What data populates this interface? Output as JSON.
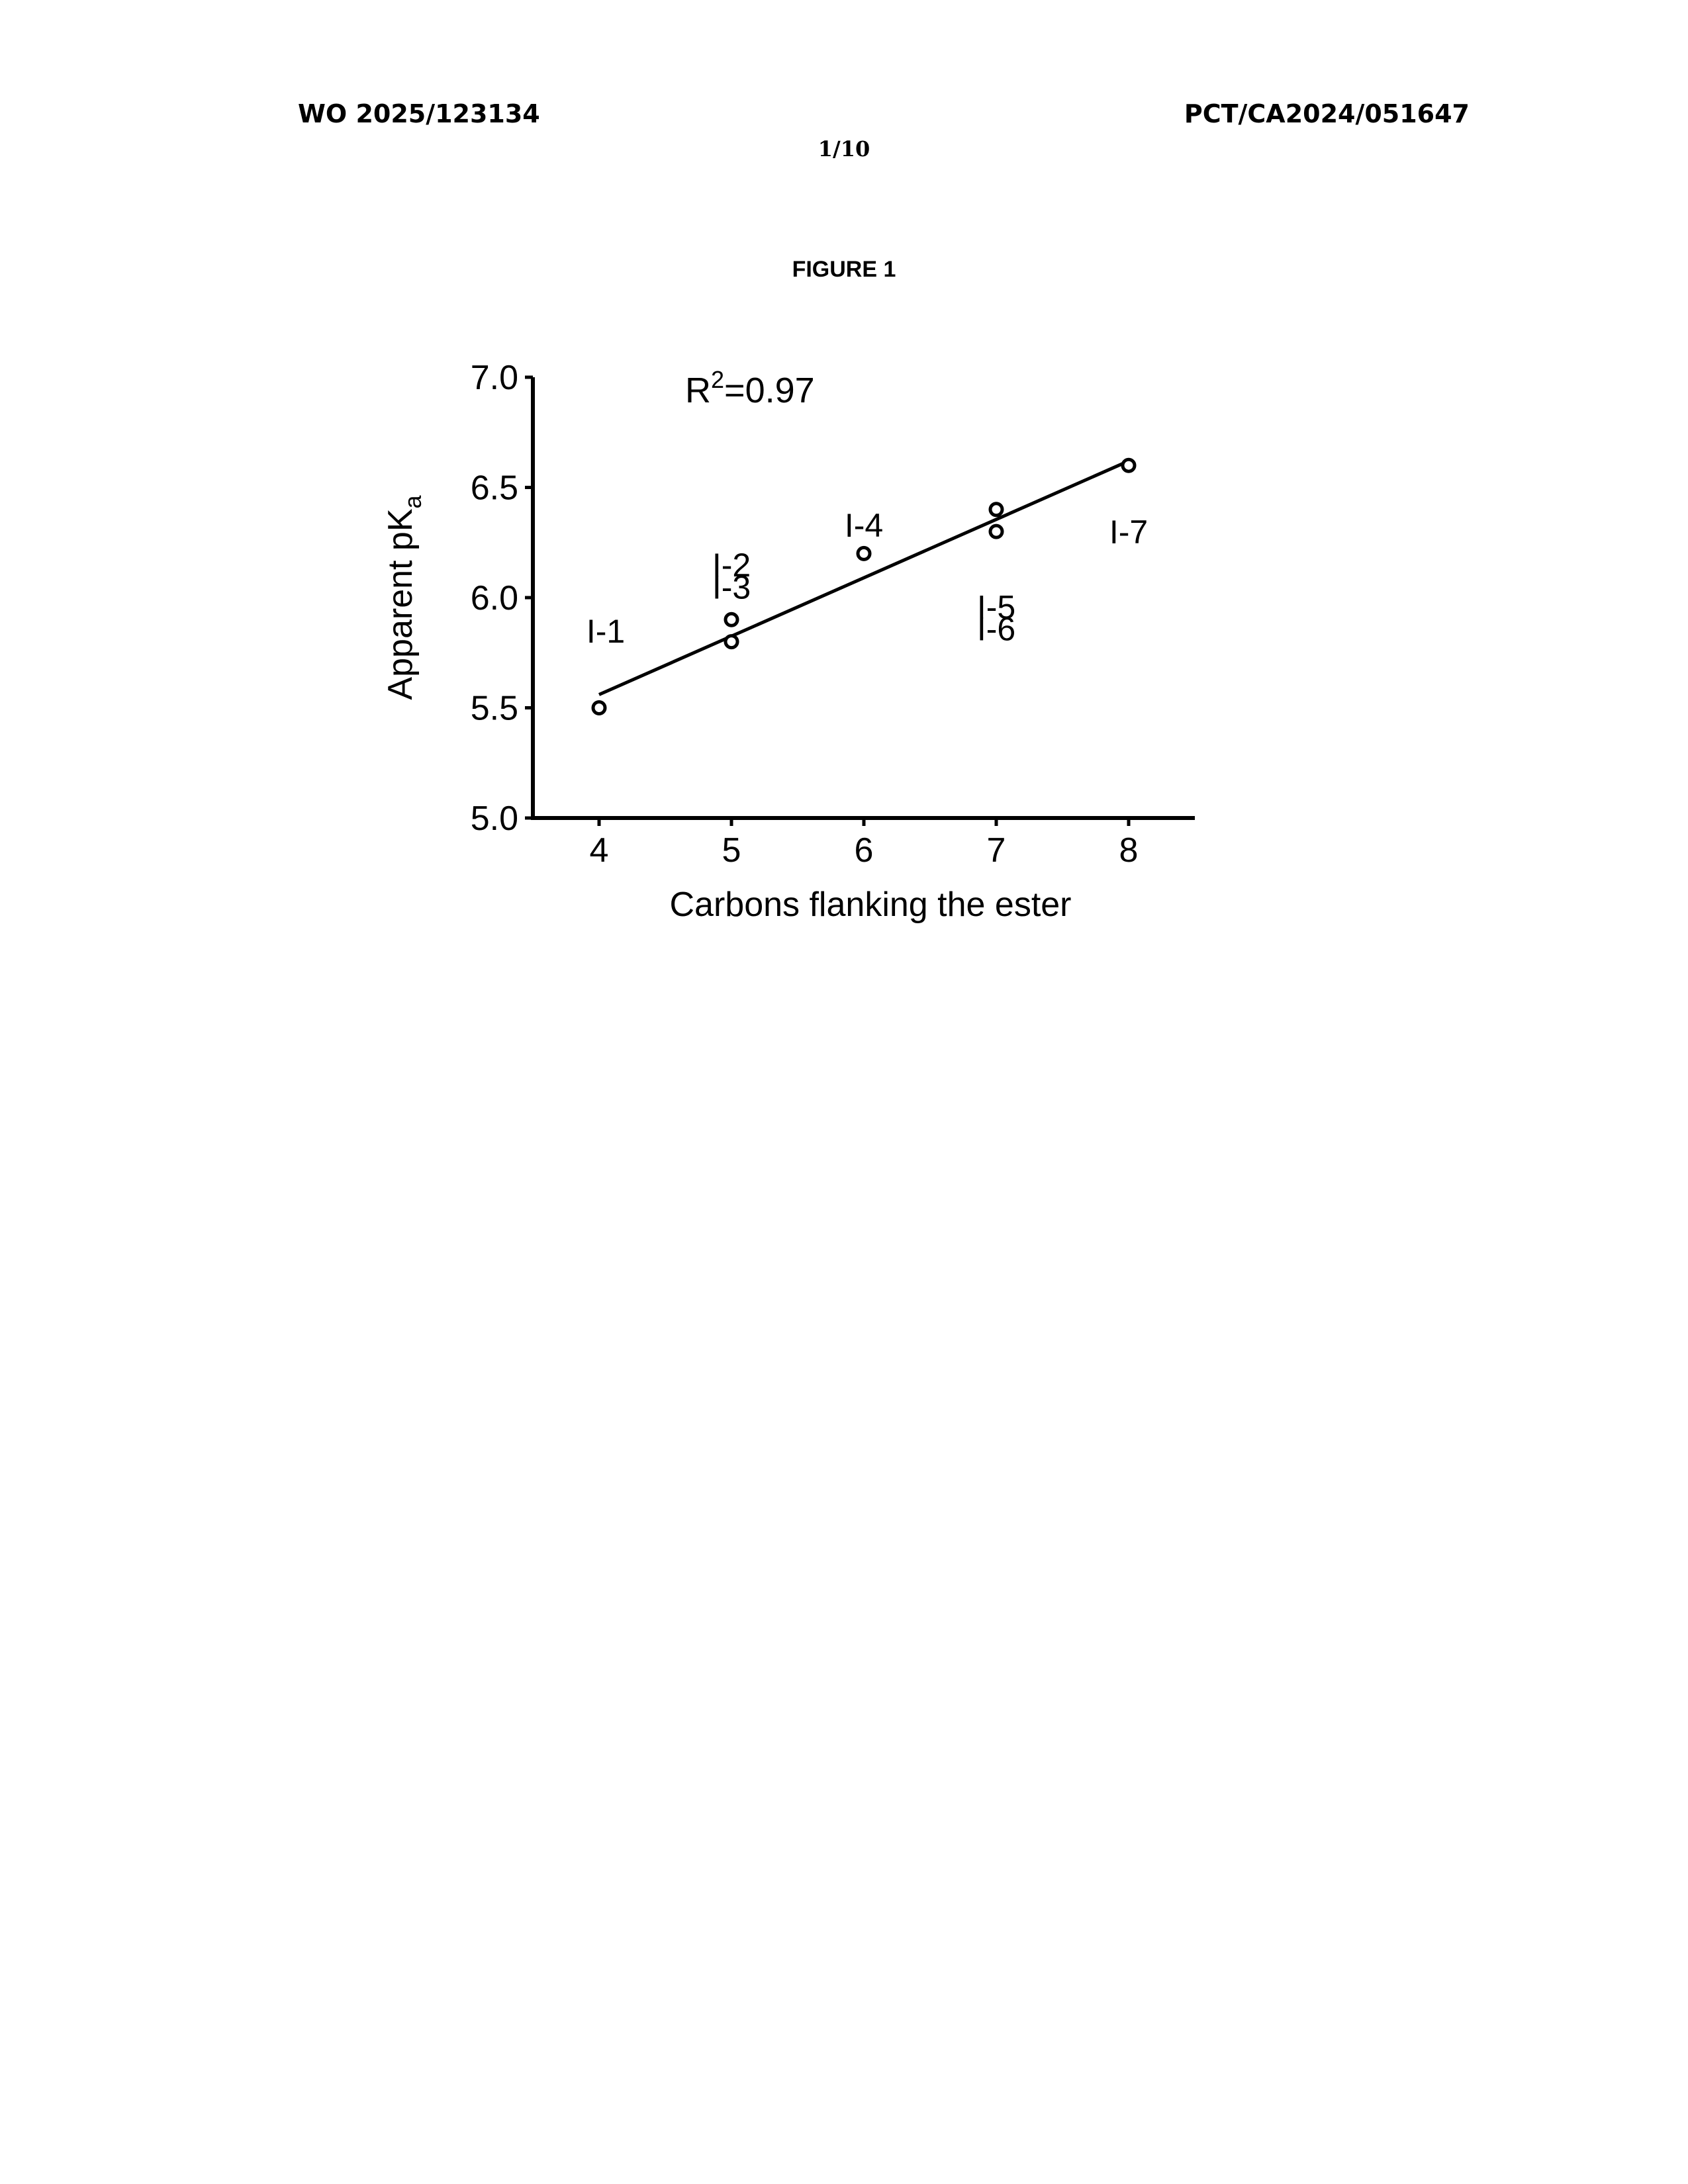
{
  "header": {
    "left": "WO 2025/123134",
    "right": "PCT/CA2024/051647",
    "page": "1/10"
  },
  "figure_title": "FIGURE 1",
  "chart_data": {
    "type": "scatter",
    "xlabel": "Carbons flanking the ester",
    "ylabel": {
      "main": "Apparent pK",
      "sub": "a"
    },
    "annotation": {
      "main": "R",
      "sup": "2",
      "rest": "=0.97"
    },
    "xlim": [
      3.5,
      8.5
    ],
    "ylim": [
      5.0,
      7.0
    ],
    "xticks": [
      4,
      5,
      6,
      7,
      8
    ],
    "yticks": [
      "5.0",
      "5.5",
      "6.0",
      "6.5",
      "7.0"
    ],
    "grid": false,
    "points": [
      {
        "x": 4,
        "y": 5.5
      },
      {
        "x": 5,
        "y": 5.9
      },
      {
        "x": 5,
        "y": 5.8
      },
      {
        "x": 6,
        "y": 6.2
      },
      {
        "x": 7,
        "y": 6.4
      },
      {
        "x": 7,
        "y": 6.3
      },
      {
        "x": 8,
        "y": 6.6
      }
    ],
    "fit_line": {
      "x_start": 4,
      "y_start": 5.56,
      "x_end": 8,
      "y_end": 6.62
    },
    "point_labels": [
      {
        "text": "I-1",
        "x": 4.05,
        "y": 5.85
      },
      {
        "text": "I-2",
        "x": 5.0,
        "y": 6.15
      },
      {
        "text": "I-3",
        "x": 5.0,
        "y": 6.05
      },
      {
        "text": "I-4",
        "x": 6.0,
        "y": 6.33
      },
      {
        "text": "I-5",
        "x": 7.0,
        "y": 5.96
      },
      {
        "text": "I-6",
        "x": 7.0,
        "y": 5.86
      },
      {
        "text": "I-7",
        "x": 8.0,
        "y": 6.3
      }
    ]
  }
}
